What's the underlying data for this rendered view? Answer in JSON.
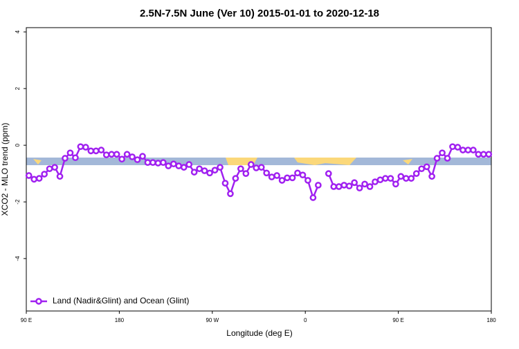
{
  "chart_data": {
    "type": "line",
    "title": "2.5N-7.5N June (Ver 10)   2015-01-01 to 2020-12-18",
    "x_label": "Longitude (deg E)",
    "y_label": "XCO2 - MLO trend (ppm)",
    "xlim": [
      90,
      540
    ],
    "xticks": [
      {
        "value": 90,
        "label": "90 E"
      },
      {
        "value": 180,
        "label": "180"
      },
      {
        "value": 270,
        "label": "90 W"
      },
      {
        "value": 360,
        "label": "0"
      },
      {
        "value": 450,
        "label": "90 E"
      },
      {
        "value": 540,
        "label": "180"
      }
    ],
    "ylim": [
      -5.85,
      4.15
    ],
    "yticks": [
      -4,
      -2,
      0,
      2,
      4
    ],
    "legend": "bottom-left",
    "x": [
      92.5,
      97.5,
      102.5,
      107.5,
      112.5,
      117.5,
      122.5,
      127.5,
      132.5,
      137.5,
      142.5,
      147.5,
      152.5,
      157.5,
      162.5,
      167.5,
      172.5,
      177.5,
      182.5,
      187.5,
      192.5,
      197.5,
      202.5,
      207.5,
      212.5,
      217.5,
      222.5,
      227.5,
      232.5,
      237.5,
      242.5,
      247.5,
      252.5,
      257.5,
      262.5,
      267.5,
      272.5,
      277.5,
      282.5,
      287.5,
      292.5,
      297.5,
      302.5,
      307.5,
      312.5,
      317.5,
      322.5,
      327.5,
      332.5,
      337.5,
      342.5,
      347.5,
      352.5,
      357.5,
      362.5,
      367.5,
      372.5,
      377.5,
      382.5,
      387.5,
      392.5,
      397.5,
      402.5,
      407.5,
      412.5,
      417.5,
      422.5,
      427.5,
      432.5,
      437.5,
      442.5,
      447.5,
      452.5,
      457.5,
      462.5,
      467.5,
      472.5,
      477.5,
      482.5,
      487.5,
      492.5,
      497.5,
      502.5,
      507.5,
      512.5,
      517.5,
      522.5,
      527.5,
      532.5,
      537.5
    ],
    "series": [
      {
        "name": "Land (Nadir&Glint) and Ocean (Glint)",
        "color": "#a020f0",
        "values": [
          -1.07,
          -1.2,
          -1.17,
          -1.02,
          -0.83,
          -0.78,
          -1.1,
          -0.46,
          -0.27,
          -0.44,
          -0.05,
          -0.07,
          -0.2,
          -0.2,
          -0.17,
          -0.34,
          -0.32,
          -0.32,
          -0.49,
          -0.32,
          -0.41,
          -0.51,
          -0.39,
          -0.61,
          -0.61,
          -0.63,
          -0.61,
          -0.73,
          -0.66,
          -0.73,
          -0.78,
          -0.68,
          -0.95,
          -0.83,
          -0.9,
          -0.98,
          -0.88,
          -0.78,
          -1.34,
          -1.71,
          -1.17,
          -0.83,
          -1.0,
          -0.68,
          -0.8,
          -0.78,
          -0.98,
          -1.12,
          -1.07,
          -1.24,
          -1.15,
          -1.15,
          -0.98,
          -1.05,
          -1.24,
          -1.85,
          -1.41,
          null,
          -1.0,
          -1.46,
          -1.46,
          -1.41,
          -1.44,
          -1.32,
          -1.51,
          -1.37,
          -1.46,
          -1.29,
          -1.22,
          -1.17,
          -1.17,
          -1.37,
          -1.1,
          -1.17,
          -1.17,
          -1.0,
          -0.83,
          -0.76,
          -1.1,
          -0.46,
          -0.27,
          -0.46,
          -0.05,
          -0.07,
          -0.17,
          -0.17,
          -0.17,
          -0.32,
          -0.32,
          -0.32
        ]
      }
    ]
  }
}
